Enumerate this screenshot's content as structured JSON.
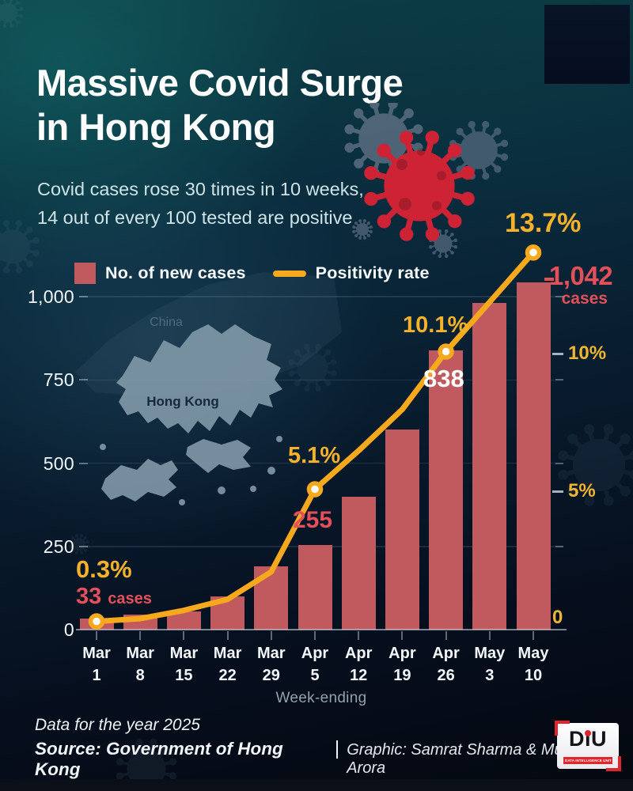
{
  "header": {
    "title_line1": "Massive Covid Surge",
    "title_line2": "in Hong Kong",
    "subtitle_line1": "Covid cases rose 30 times in 10 weeks,",
    "subtitle_line2": "14 out of every 100 tested are positive"
  },
  "legend": {
    "cases_label": "No. of new cases",
    "rate_label": "Positivity rate"
  },
  "chart_data": {
    "type": "bar+line",
    "categories": [
      "Mar 1",
      "Mar 8",
      "Mar 15",
      "Mar 22",
      "Mar 29",
      "Apr 5",
      "Apr 12",
      "Apr 19",
      "Apr 26",
      "May 3",
      "May 10"
    ],
    "series": [
      {
        "name": "No. of new cases",
        "type": "bar",
        "color": "#c05a5f",
        "values": [
          33,
          45,
          55,
          100,
          190,
          255,
          400,
          600,
          838,
          980,
          1042
        ]
      },
      {
        "name": "Positivity rate",
        "type": "line",
        "color": "#f6a91d",
        "unit": "%",
        "values": [
          0.3,
          0.4,
          0.7,
          1.1,
          2.1,
          5.1,
          6.5,
          8.0,
          10.1,
          11.9,
          13.7
        ]
      }
    ],
    "left_axis": {
      "ticks": [
        0,
        250,
        500,
        750,
        1000
      ],
      "labels": [
        "0",
        "250",
        "500",
        "750",
        "1,000"
      ],
      "range": [
        0,
        1050
      ]
    },
    "right_axis": {
      "ticks": [
        0,
        5,
        10
      ],
      "labels": [
        "0",
        "5%",
        "10%"
      ],
      "range": [
        0,
        14.5
      ]
    },
    "xlabel": "Week-ending",
    "grid": "horizontal",
    "legend_position": "top-left",
    "highlighted_points": [
      {
        "category": "Mar 1",
        "rate": "0.3%",
        "cases": "33",
        "suffix": "cases"
      },
      {
        "category": "Apr 5",
        "rate": "5.1%",
        "cases": "255",
        "suffix": ""
      },
      {
        "category": "Apr 26",
        "rate": "10.1%",
        "cases": "838",
        "suffix": ""
      },
      {
        "category": "May 10",
        "rate": "13.7%",
        "cases": "1,042",
        "suffix": "cases"
      }
    ]
  },
  "map": {
    "china_label": "China",
    "hong_kong_label": "Hong Kong"
  },
  "footer": {
    "line1": "Data for the year 2025",
    "source": "Source: Government of Hong Kong",
    "separator": "|",
    "credit": "Graphic: Samrat Sharma & Muskan Arora",
    "logo_text": "DiU",
    "logo_subtext": "DATA INTELLIGENCE UNIT"
  },
  "colors": {
    "bar_red": "#c05a5f",
    "line_yellow": "#f6a91d",
    "annotation_yellow": "#f3b229",
    "annotation_red": "#e4505a",
    "virus_red": "#cd2335",
    "virus_gray": "#5a6e80",
    "map_fill": "#849cab"
  }
}
